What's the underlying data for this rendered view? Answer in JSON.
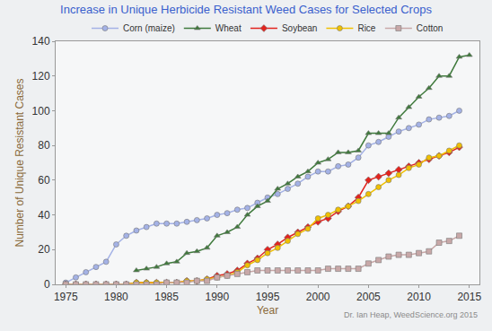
{
  "chart_data": {
    "type": "line",
    "title": "Increase in Unique Herbicide Resistant Weed Cases for Selected Crops",
    "x_label": "Year",
    "y_label": "Number of Unique Resistant Cases",
    "annotations": [
      "Dr. Ian Heap, WeedScience.org 2015"
    ],
    "x": [
      1975,
      1976,
      1977,
      1978,
      1979,
      1980,
      1981,
      1982,
      1983,
      1984,
      1985,
      1986,
      1987,
      1988,
      1989,
      1990,
      1991,
      1992,
      1993,
      1994,
      1995,
      1996,
      1997,
      1998,
      1999,
      2000,
      2001,
      2002,
      2003,
      2004,
      2005,
      2006,
      2007,
      2008,
      2009,
      2010,
      2011,
      2012,
      2013,
      2014,
      2015
    ],
    "series": [
      {
        "name": "Corn (maize)",
        "color": "#a4b2e6",
        "marker": "circle",
        "values": [
          1,
          4,
          7,
          10,
          13,
          23,
          28,
          31,
          33,
          35,
          35,
          35,
          36,
          37,
          38,
          40,
          41,
          43,
          44,
          47,
          50,
          52,
          55,
          58,
          62,
          65,
          65,
          68,
          69,
          73,
          80,
          82,
          85,
          88,
          90,
          92,
          95,
          96,
          97,
          100,
          null
        ]
      },
      {
        "name": "Wheat",
        "color": "#3f7a3c",
        "marker": "triangle-up",
        "values": [
          null,
          null,
          null,
          null,
          null,
          null,
          null,
          8,
          9,
          10,
          12,
          13,
          18,
          19,
          21,
          28,
          30,
          33,
          40,
          45,
          48,
          55,
          58,
          62,
          65,
          70,
          72,
          76,
          76,
          77,
          87,
          87,
          87,
          96,
          102,
          108,
          113,
          120,
          120,
          131,
          132
        ]
      },
      {
        "name": "Soybean",
        "color": "#e2231d",
        "marker": "diamond",
        "values": [
          0,
          0,
          0,
          0,
          0,
          0,
          0,
          1,
          1,
          1,
          1,
          1,
          2,
          2,
          3,
          5,
          6,
          8,
          12,
          15,
          20,
          23,
          27,
          30,
          33,
          36,
          38,
          42,
          45,
          50,
          60,
          62,
          64,
          66,
          68,
          70,
          72,
          74,
          76,
          79,
          null
        ]
      },
      {
        "name": "Rice",
        "color": "#f0c000",
        "marker": "circle",
        "values": [
          0,
          0,
          0,
          0,
          0,
          0,
          0,
          1,
          1,
          1,
          1,
          1,
          2,
          2,
          3,
          4,
          5,
          7,
          11,
          14,
          18,
          21,
          25,
          29,
          32,
          38,
          40,
          43,
          45,
          48,
          52,
          56,
          60,
          63,
          67,
          69,
          73,
          74,
          77,
          80,
          null
        ]
      },
      {
        "name": "Cotton",
        "color": "#c8a8a8",
        "marker": "square",
        "values": [
          0,
          0,
          0,
          0,
          0,
          0,
          0,
          0,
          0,
          0,
          1,
          1,
          1,
          2,
          2,
          4,
          5,
          6,
          7,
          8,
          8,
          8,
          8,
          8,
          8,
          8,
          9,
          9,
          9,
          9,
          12,
          14,
          16,
          17,
          17,
          18,
          19,
          24,
          25,
          28,
          null
        ]
      }
    ],
    "xlim": [
      1974,
      2016
    ],
    "xticks": [
      1975,
      1980,
      1985,
      1990,
      1995,
      2000,
      2005,
      2010,
      2015
    ],
    "ylim": [
      0,
      140
    ],
    "yticks": [
      0,
      20,
      40,
      60,
      80,
      100,
      120,
      140
    ],
    "grid": false,
    "legend": "top"
  }
}
